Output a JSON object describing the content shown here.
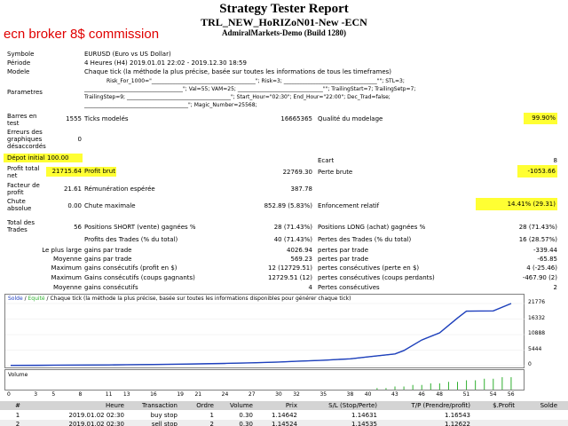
{
  "report": {
    "title": "Strategy Tester Report",
    "expert": "TRL_NEW_HoRIZoN01-New -ECN",
    "server": "AdmiralMarkets-Demo (Build 1280)",
    "overlay": "ecn broker 8$ commission"
  },
  "settings": {
    "symbol_label": "Symbole",
    "symbol_value": "EURUSD (Euro vs US Dollar)",
    "period_label": "Période",
    "period_value": "4 Heures (H4) 2019.01.01 22:02 - 2019.12.30 18:59",
    "model_label": "Modele",
    "model_value": "Chaque tick (la méthode la plus précise, basée sur toutes les informations de tous les timeframes)",
    "params_label": "Parametres",
    "params_line1": "Risk_For_1000=\"_______________________________________\"; Risk=3; ___________________________________\"\"; STL=3;",
    "params_line2": "_____________________________________\"; Val=55; VAM=25; ________________________________\"\"; TrailingStart=7; TrailingSetp=7;",
    "params_line3": "TrailingStep=9; _______________________________________\"; Start_Hour=\"02:30\"; End_Hour=\"22:00\"; Dec_Trad=false;",
    "params_line4": "_______________________________________\"; Magic_Number=25568;"
  },
  "stats": {
    "bars_label": "Barres en test",
    "bars_value": "1555",
    "ticks_label": "Ticks modelés",
    "ticks_value": "16665365",
    "quality_label": "Qualité du modelage",
    "quality_value": "99.90%",
    "errors_label": "Erreurs des graphiques désaccordés",
    "errors_value": "0",
    "deposit_label": "Dépot initial",
    "deposit_value": "100.00",
    "spread_label": "Ecart",
    "spread_value": "8",
    "net_label": "Profit total net",
    "net_value": "21715.64",
    "gross_profit_label": "Profit brut",
    "gross_profit_value": "22769.30",
    "gross_loss_label": "Perte brute",
    "gross_loss_value": "-1053.66",
    "pf_label": "Facteur de profit",
    "pf_value": "21.61",
    "payoff_label": "Rémunération espérée",
    "payoff_value": "387.78",
    "dd_label": "Chute absolue",
    "dd_value": "0.00",
    "maxdd_label": "Chute maximale",
    "maxdd_value": "852.89 (5.83%)",
    "reldd_label": "Enfoncement relatif",
    "reldd_value": "14.41% (29.31)",
    "trades_label": "Total des Trades",
    "trades_value": "56",
    "short_label": "Positions SHORT (vente) gagnées %",
    "short_value": "28 (71.43%)",
    "long_label": "Positions LONG (achat) gagnées %",
    "long_value": "28 (71.43%)",
    "profit_trades_label": "Profits des Trades (% du total)",
    "profit_trades_value": "40 (71.43%)",
    "loss_trades_label": "Pertes des Trades (% du total)",
    "loss_trades_value": "16 (28.57%)",
    "largest_label": "Le plus large",
    "largest_profit_label": "gains par trade",
    "largest_profit_value": "4026.94",
    "largest_loss_label": "pertes par trade",
    "largest_loss_value": "-339.44",
    "average_label": "Moyenne",
    "average_profit_label": "gains par trade",
    "average_profit_value": "569.23",
    "average_loss_label": "pertes par trade",
    "average_loss_value": "-65.85",
    "max_label": "Maximum",
    "max_consec_wins_label": "gains consécutifs (profit en $)",
    "max_consec_wins_value": "12 (12729.51)",
    "max_consec_losses_label": "pertes consécutives (perte en $)",
    "max_consec_losses_value": "4 (-25.46)",
    "max2_label": "Maximum",
    "max_consec_profit_label": "Gains consécutifs (coups gagnants)",
    "max_consec_profit_value": "12729.51 (12)",
    "max_consec_loss_label": "pertes consécutives (coups perdants)",
    "max_consec_loss_value": "-467.90 (2)",
    "avg2_label": "Moyenne",
    "avg_consec_wins_label": "gains consécutifs",
    "avg_consec_wins_value": "4",
    "avg_consec_losses_label": "Pertes consécutives",
    "avg_consec_losses_value": "2"
  },
  "chart": {
    "legend_solde": "Solde",
    "legend_sep": " / ",
    "legend_equite": "Equité",
    "legend_desc": " / Chaque tick (la méthode la plus précise, basée sur toutes les informations disponibles pour générer chaque tick)",
    "volume_label": "Volume"
  },
  "colors": {
    "balance": "#1f3fbf",
    "equity": "#30b030",
    "highlight": "#ffff33",
    "overlay_text": "#e00000",
    "table_header": "#d4d4d4"
  },
  "chart_data": {
    "type": "line",
    "x": [
      0,
      3,
      5,
      8,
      11,
      13,
      16,
      19,
      21,
      24,
      27,
      30,
      32,
      35,
      38,
      40,
      43,
      44,
      46,
      48,
      50,
      51,
      54,
      56
    ],
    "series": [
      {
        "name": "Solde",
        "values": [
          100,
          120,
          160,
          200,
          260,
          330,
          420,
          520,
          620,
          780,
          980,
          1250,
          1550,
          1900,
          2400,
          3100,
          4100,
          5300,
          9000,
          11500,
          16700,
          19100,
          19200,
          21776
        ]
      },
      {
        "name": "Equité",
        "values": [
          100,
          118,
          158,
          198,
          258,
          328,
          418,
          515,
          615,
          775,
          975,
          1240,
          1545,
          1895,
          2390,
          3090,
          4090,
          5290,
          8990,
          11490,
          16690,
          19090,
          19190,
          21776
        ]
      }
    ],
    "y_ticks": [
      "21776",
      "16332",
      "10888",
      "5444",
      "0"
    ],
    "x_ticks": [
      "0",
      "3",
      "5",
      "8",
      "11",
      "13",
      "16",
      "19",
      "21",
      "24",
      "27",
      "30",
      "32",
      "35",
      "38",
      "40",
      "43",
      "46",
      "48",
      "51",
      "54",
      "56"
    ],
    "volume_bars": [
      0,
      0,
      0,
      0,
      0,
      0,
      0,
      0,
      0,
      0,
      0,
      0,
      0,
      0,
      0,
      0,
      0,
      0,
      0,
      0,
      0,
      0,
      0,
      0,
      0,
      0,
      0,
      0,
      0,
      0,
      0,
      0,
      0,
      0,
      0,
      0,
      0,
      0,
      0,
      0,
      1,
      1,
      2,
      2,
      3,
      3,
      4,
      4,
      5,
      5,
      6,
      6,
      7,
      7,
      8,
      8
    ],
    "ylim": [
      0,
      21776
    ],
    "xlim": [
      0,
      57
    ]
  },
  "table": {
    "headers": [
      "#",
      "Heure",
      "Transaction",
      "Ordre",
      "Volume",
      "Prix",
      "S/L (Stop/Perte)",
      "T/P (Prendre/profit)",
      "$.Profit",
      "Solde"
    ],
    "rows": [
      [
        "1",
        "2019.01.02 02:30",
        "buy stop",
        "1",
        "0.30",
        "1.14642",
        "1.14631",
        "1.16543",
        "",
        ""
      ],
      [
        "2",
        "2019.01.02 02:30",
        "sell stop",
        "2",
        "0.30",
        "1.14524",
        "1.14535",
        "1.12622",
        "",
        ""
      ]
    ]
  }
}
